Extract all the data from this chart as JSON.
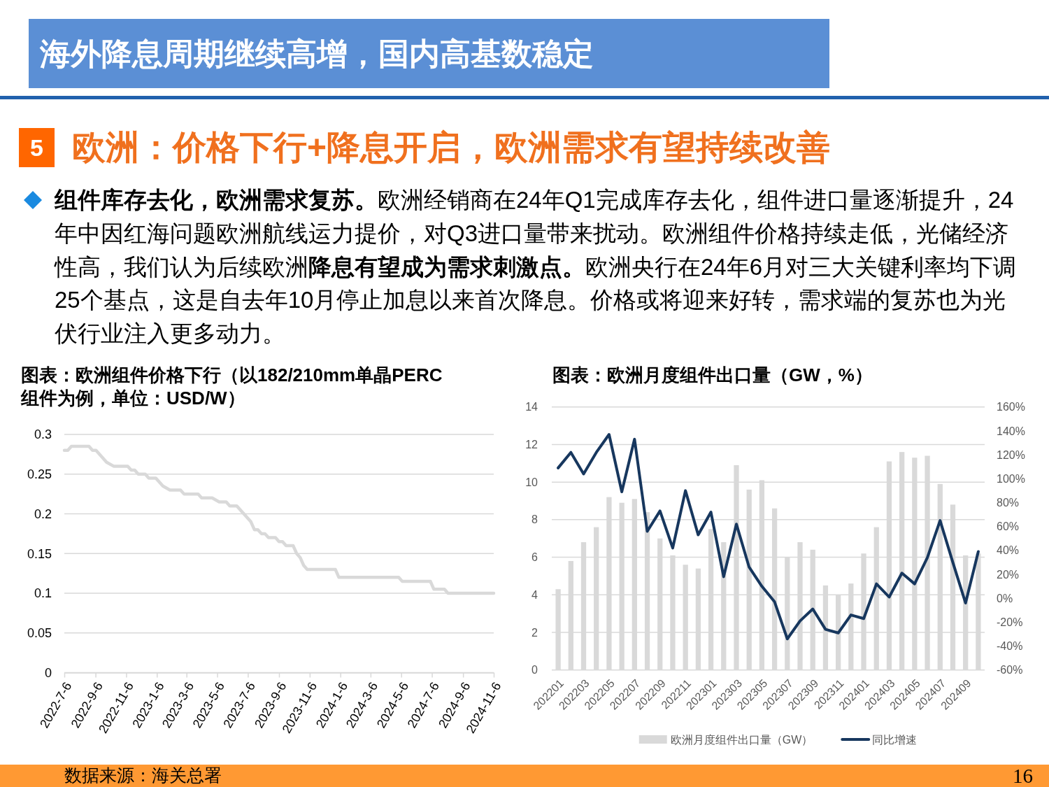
{
  "chart_data": [
    {
      "type": "other",
      "title": "海外降息周期继续高增，国内高基数稳定",
      "subtitle": "欧洲：价格下行+降息开启，欧洲需求有望持续改善",
      "annotations": [
        "5",
        "组件库存去化，欧洲需求复苏。",
        "欧洲经销商在24年Q1完成库存去化，组件进口量逐渐提升，24",
        "年中因红海问题欧洲航线运力提价，对Q3进口量带来扰动。欧洲组件价格持续走低，光储经济",
        "性高，我们认为后续欧洲",
        "降息有望成为需求刺激点。",
        "欧洲央行在24年6月对三大关键利率均下调",
        "25个基点，这是自去年10月停止加息以来首次降息。价格或将迎来好转，需求端的复苏也为光",
        "伏行业注入更多动力。"
      ]
    },
    {
      "type": "line",
      "title": "图表：欧洲组件价格下行（以182/210mm单晶PERC组件为例，单位：USD/W）",
      "color": "#d9d9d9",
      "x": [
        "2022-07-06",
        "2022-07-13",
        "2022-07-20",
        "2022-08-24",
        "2022-08-31",
        "2022-09-07",
        "2022-09-28",
        "2022-10-12",
        "2022-11-09",
        "2022-11-16",
        "2022-11-23",
        "2022-11-30",
        "2022-12-14",
        "2022-12-21",
        "2023-01-04",
        "2023-01-18",
        "2023-02-01",
        "2023-02-22",
        "2023-03-01",
        "2023-03-29",
        "2023-04-05",
        "2023-04-26",
        "2023-05-10",
        "2023-05-24",
        "2023-05-31",
        "2023-06-14",
        "2023-06-28",
        "2023-07-12",
        "2023-07-19",
        "2023-07-26",
        "2023-08-02",
        "2023-08-09",
        "2023-08-16",
        "2023-08-30",
        "2023-09-06",
        "2023-09-13",
        "2023-09-20",
        "2023-10-04",
        "2023-10-11",
        "2023-10-18",
        "2023-10-25",
        "2023-11-01",
        "2023-12-27",
        "2024-01-03",
        "2024-05-01",
        "2024-05-08",
        "2024-07-03",
        "2024-07-10",
        "2024-07-31",
        "2024-08-07",
        "2024-11-06"
      ],
      "values": [
        0.28,
        0.28,
        0.285,
        0.285,
        0.28,
        0.28,
        0.265,
        0.26,
        0.26,
        0.255,
        0.255,
        0.25,
        0.25,
        0.245,
        0.245,
        0.235,
        0.23,
        0.23,
        0.225,
        0.225,
        0.22,
        0.22,
        0.215,
        0.215,
        0.21,
        0.21,
        0.2,
        0.19,
        0.18,
        0.18,
        0.175,
        0.175,
        0.17,
        0.17,
        0.165,
        0.165,
        0.16,
        0.16,
        0.15,
        0.145,
        0.135,
        0.13,
        0.13,
        0.12,
        0.12,
        0.115,
        0.115,
        0.105,
        0.105,
        0.1,
        0.1
      ],
      "xlim": [
        "2022-07-06",
        "2024-11-06"
      ],
      "xticks": [
        {
          "value": "2022-07-06",
          "label": "2022-7-6"
        },
        {
          "value": "2022-09-06",
          "label": "2022-9-6"
        },
        {
          "value": "2022-11-06",
          "label": "2022-11-6"
        },
        {
          "value": "2023-01-06",
          "label": "2023-1-6"
        },
        {
          "value": "2023-03-06",
          "label": "2023-3-6"
        },
        {
          "value": "2023-05-06",
          "label": "2023-5-6"
        },
        {
          "value": "2023-07-06",
          "label": "2023-7-6"
        },
        {
          "value": "2023-09-06",
          "label": "2023-9-6"
        },
        {
          "value": "2023-11-06",
          "label": "2023-11-6"
        },
        {
          "value": "2024-01-06",
          "label": "2024-1-6"
        },
        {
          "value": "2024-03-06",
          "label": "2024-3-6"
        },
        {
          "value": "2024-05-06",
          "label": "2024-5-6"
        },
        {
          "value": "2024-07-06",
          "label": "2024-7-6"
        },
        {
          "value": "2024-09-06",
          "label": "2024-9-6"
        },
        {
          "value": "2024-11-06",
          "label": "2024-11-6"
        }
      ],
      "ylim": [
        0,
        0.3
      ],
      "yticks": [
        0,
        0.05,
        0.1,
        0.15,
        0.2,
        0.25,
        0.3
      ],
      "grid": "y"
    },
    {
      "type": "bar",
      "title": "图表：欧洲月度组件出口量（GW，%）",
      "categories": [
        "202201",
        null,
        "202203",
        null,
        "202205",
        null,
        "202207",
        null,
        "202209",
        null,
        "202211",
        null,
        "202301",
        null,
        "202303",
        null,
        "202305",
        null,
        "202307",
        null,
        "202309",
        null,
        "202311",
        null,
        "202401",
        null,
        "202403",
        null,
        "202405",
        null,
        "202407",
        null,
        "202409",
        null
      ],
      "series": [
        {
          "name": "欧洲月度组件出口量（GW）",
          "color": "#d9d9d9",
          "values": [
            4.3,
            5.8,
            6.8,
            7.6,
            9.2,
            8.9,
            9.1,
            8.4,
            7.0,
            6.1,
            5.6,
            5.4,
            7.5,
            6.8,
            10.9,
            9.6,
            10.1,
            8.6,
            6.0,
            6.8,
            6.4,
            4.5,
            4.0,
            4.6,
            6.2,
            7.6,
            11.1,
            11.6,
            11.3,
            11.4,
            9.9,
            8.8,
            6.1,
            6.2
          ]
        },
        {
          "name": "同比增速",
          "type": "line",
          "axis": "y2",
          "color": "#17375e",
          "values": [
            109,
            122,
            104,
            122,
            137,
            89,
            133,
            56,
            73,
            42,
            90,
            53,
            72,
            18,
            62,
            26,
            10,
            -3,
            -34,
            -19,
            -9,
            -26,
            -29,
            -14,
            -17,
            12,
            1,
            21,
            12,
            34,
            65,
            30,
            -4,
            39
          ]
        }
      ],
      "ylim": [
        0,
        14
      ],
      "yticks": [
        0,
        2,
        4,
        6,
        8,
        10,
        12,
        14
      ],
      "y2lim": [
        -60,
        160
      ],
      "y2ticks": [
        {
          "value": -60,
          "label": "-60%"
        },
        {
          "value": -40,
          "label": "-40%"
        },
        {
          "value": -20,
          "label": "-20%"
        },
        {
          "value": 0,
          "label": "0%"
        },
        {
          "value": 20,
          "label": "20%"
        },
        {
          "value": 40,
          "label": "40%"
        },
        {
          "value": 60,
          "label": "60%"
        },
        {
          "value": 80,
          "label": "80%"
        },
        {
          "value": 100,
          "label": "100%"
        },
        {
          "value": 120,
          "label": "120%"
        },
        {
          "value": 140,
          "label": "140%"
        },
        {
          "value": 160,
          "label": "160%"
        }
      ],
      "grid": "y",
      "legend": "bottom"
    },
    {
      "type": "other",
      "annotations": [
        "数据来源：海关总署",
        "16"
      ]
    }
  ]
}
